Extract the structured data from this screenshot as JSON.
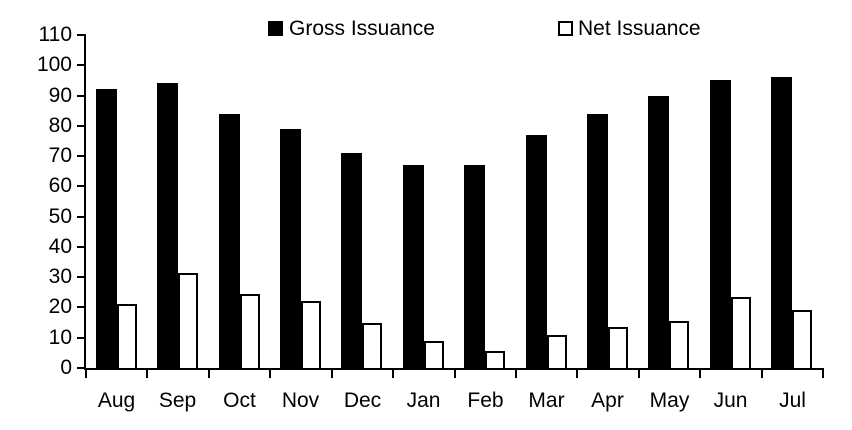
{
  "legend": {
    "gross_label": "Gross Issuance",
    "net_label": "Net Issuance"
  },
  "colors": {
    "background": "#ffffff",
    "axis": "#000000",
    "gross_fill": "#000000",
    "net_fill": "#ffffff",
    "net_border": "#000000"
  },
  "chart_data": {
    "type": "bar",
    "categories": [
      "Aug",
      "Sep",
      "Oct",
      "Nov",
      "Dec",
      "Jan",
      "Feb",
      "Mar",
      "Apr",
      "May",
      "Jun",
      "Jul"
    ],
    "series": [
      {
        "name": "Gross Issuance",
        "fill": "#000000",
        "values": [
          92,
          94,
          84,
          79,
          71,
          67,
          67,
          77,
          84,
          90,
          95,
          96
        ]
      },
      {
        "name": "Net Issuance",
        "fill": "#ffffff",
        "stroke": "#000000",
        "values": [
          21,
          31.5,
          24.5,
          22,
          15,
          9,
          5.5,
          11,
          13.5,
          15.5,
          23.5,
          19
        ]
      }
    ],
    "title": "",
    "xlabel": "",
    "ylabel": "",
    "ylim": [
      0,
      110
    ],
    "yticks": [
      0,
      10,
      20,
      30,
      40,
      50,
      60,
      70,
      80,
      90,
      100,
      110
    ],
    "grid": false,
    "legend_position": "top"
  }
}
